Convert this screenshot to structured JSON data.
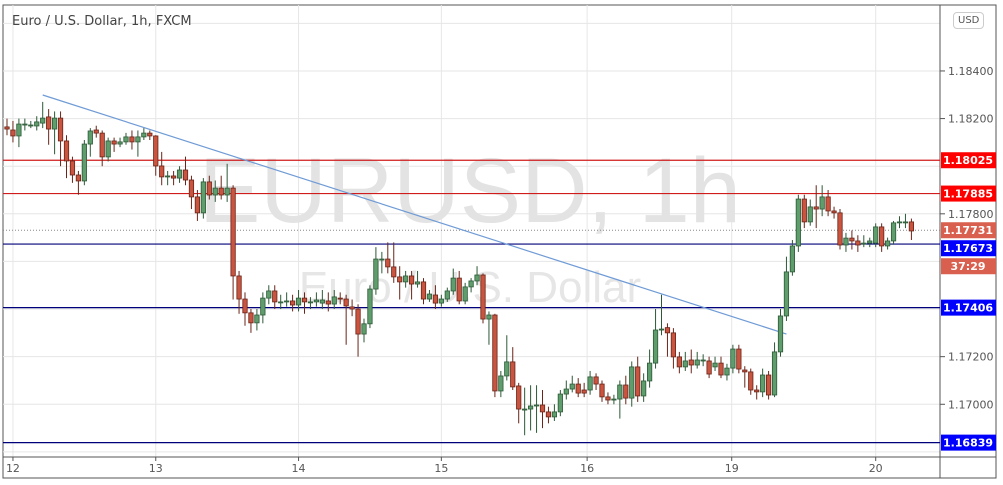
{
  "header": {
    "title": "Euro / U.S. Dollar, 1h, FXCM",
    "currency_button": "USD"
  },
  "watermark": {
    "symbol": "EURUSD, 1h",
    "name": "Euro / U.S. Dollar"
  },
  "colors": {
    "up": "#5f9d6d",
    "up_border": "#2c5a37",
    "down": "#c9543f",
    "down_border": "#6a2418",
    "resistance": "#d01c1c",
    "support": "#00007a",
    "label_red": "#ff0000",
    "label_blue": "#0000ff",
    "last_price": "#d9604e",
    "trendline": "#6f9bd6",
    "grid": "#e6e6e6"
  },
  "chart_data": {
    "type": "candlestick",
    "title": "Euro / U.S. Dollar, 1h, FXCM",
    "ylim": [
      1.168,
      1.18698
    ],
    "y_ticks": [
      "1.18400",
      "1.18200",
      "1.17800",
      "1.17200",
      "1.17000"
    ],
    "x_ticks": [
      {
        "label": "12",
        "index": 1
      },
      {
        "label": "13",
        "index": 25
      },
      {
        "label": "14",
        "index": 49
      },
      {
        "label": "15",
        "index": 73
      },
      {
        "label": "16",
        "index": 97.5
      },
      {
        "label": "19",
        "index": 121.8
      },
      {
        "label": "20",
        "index": 146
      }
    ],
    "levels": [
      {
        "price": 1.18025,
        "label": "1.18025",
        "kind": "resistance"
      },
      {
        "price": 1.17885,
        "label": "1.17885",
        "kind": "resistance"
      },
      {
        "price": 1.17673,
        "label": "1.17673",
        "kind": "support"
      },
      {
        "price": 1.17406,
        "label": "1.17406",
        "kind": "support"
      },
      {
        "price": 1.16839,
        "label": "1.16839",
        "kind": "support"
      }
    ],
    "last_price": {
      "price": 1.17731,
      "label": "1.17731",
      "countdown": "37:29"
    },
    "trendline": {
      "start": {
        "index": 6,
        "price": 1.18299
      },
      "end": {
        "index": 131,
        "price": 1.17295
      }
    },
    "candles_format": [
      "open",
      "high",
      "low",
      "close"
    ],
    "candles": [
      [
        1.18165,
        1.182,
        1.1813,
        1.18156
      ],
      [
        1.18152,
        1.1819,
        1.181,
        1.18127
      ],
      [
        1.18127,
        1.182,
        1.1808,
        1.18177
      ],
      [
        1.18177,
        1.182,
        1.1815,
        1.18177
      ],
      [
        1.18173,
        1.1819,
        1.1816,
        1.18173
      ],
      [
        1.18169,
        1.1821,
        1.1815,
        1.18186
      ],
      [
        1.18181,
        1.1827,
        1.1816,
        1.18202
      ],
      [
        1.18207,
        1.1824,
        1.1809,
        1.18156
      ],
      [
        1.18156,
        1.1823,
        1.1805,
        1.18202
      ],
      [
        1.18202,
        1.1823,
        1.18,
        1.18106
      ],
      [
        1.18106,
        1.1813,
        1.1795,
        1.18022
      ],
      [
        1.18022,
        1.1804,
        1.1793,
        1.17963
      ],
      [
        1.17963,
        1.1798,
        1.1788,
        1.17938
      ],
      [
        1.17938,
        1.1811,
        1.1792,
        1.18093
      ],
      [
        1.18093,
        1.1816,
        1.1804,
        1.18148
      ],
      [
        1.18152,
        1.1817,
        1.1812,
        1.18139
      ],
      [
        1.18139,
        1.1815,
        1.18,
        1.18039
      ],
      [
        1.18039,
        1.1812,
        1.1802,
        1.18106
      ],
      [
        1.18106,
        1.1812,
        1.1806,
        1.18093
      ],
      [
        1.18093,
        1.1812,
        1.1808,
        1.18102
      ],
      [
        1.18102,
        1.1814,
        1.1809,
        1.18123
      ],
      [
        1.18123,
        1.1815,
        1.1807,
        1.18102
      ],
      [
        1.18102,
        1.1815,
        1.1804,
        1.18123
      ],
      [
        1.18123,
        1.1816,
        1.1811,
        1.18139
      ],
      [
        1.18139,
        1.1815,
        1.1811,
        1.18127
      ],
      [
        1.18127,
        1.1813,
        1.1796,
        1.18001
      ],
      [
        1.18001,
        1.1806,
        1.1792,
        1.17955
      ],
      [
        1.17959,
        1.1798,
        1.1792,
        1.17959
      ],
      [
        1.17959,
        1.1798,
        1.1792,
        1.1795
      ],
      [
        1.1795,
        1.18,
        1.1793,
        1.17984
      ],
      [
        1.17984,
        1.1804,
        1.1792,
        1.17942
      ],
      [
        1.17942,
        1.1796,
        1.1782,
        1.17871
      ],
      [
        1.17871,
        1.179,
        1.1777,
        1.17804
      ],
      [
        1.17804,
        1.1795,
        1.1778,
        1.17934
      ],
      [
        1.17934,
        1.1796,
        1.1786,
        1.17879
      ],
      [
        1.17879,
        1.1794,
        1.1785,
        1.17908
      ],
      [
        1.17908,
        1.1796,
        1.1786,
        1.17879
      ],
      [
        1.17879,
        1.1801,
        1.1785,
        1.17908
      ],
      [
        1.17908,
        1.1792,
        1.1744,
        1.17539
      ],
      [
        1.17539,
        1.1756,
        1.1738,
        1.17442
      ],
      [
        1.17442,
        1.1747,
        1.1733,
        1.17384
      ],
      [
        1.17384,
        1.174,
        1.173,
        1.17342
      ],
      [
        1.17342,
        1.174,
        1.1731,
        1.17375
      ],
      [
        1.17375,
        1.1747,
        1.1734,
        1.17446
      ],
      [
        1.17446,
        1.175,
        1.1742,
        1.17476
      ],
      [
        1.17476,
        1.175,
        1.174,
        1.1743
      ],
      [
        1.1743,
        1.1746,
        1.174,
        1.1743
      ],
      [
        1.1743,
        1.1747,
        1.1741,
        1.17434
      ],
      [
        1.17434,
        1.1746,
        1.1739,
        1.17417
      ],
      [
        1.17417,
        1.1748,
        1.1739,
        1.17446
      ],
      [
        1.17446,
        1.1747,
        1.1738,
        1.1743
      ],
      [
        1.1743,
        1.1745,
        1.174,
        1.1743
      ],
      [
        1.1743,
        1.1747,
        1.1741,
        1.17438
      ],
      [
        1.17425,
        1.1748,
        1.174,
        1.17438
      ],
      [
        1.17434,
        1.1747,
        1.1739,
        1.17421
      ],
      [
        1.17421,
        1.1748,
        1.174,
        1.17451
      ],
      [
        1.17446,
        1.1747,
        1.1742,
        1.17442
      ],
      [
        1.17442,
        1.1746,
        1.1725,
        1.17413
      ],
      [
        1.17409,
        1.1744,
        1.1737,
        1.174
      ],
      [
        1.174,
        1.1742,
        1.172,
        1.17295
      ],
      [
        1.17295,
        1.1736,
        1.1726,
        1.17338
      ],
      [
        1.17338,
        1.175,
        1.1732,
        1.17484
      ],
      [
        1.17484,
        1.1766,
        1.1746,
        1.1761
      ],
      [
        1.1761,
        1.1764,
        1.1755,
        1.1761
      ],
      [
        1.1761,
        1.1768,
        1.1755,
        1.17577
      ],
      [
        1.17577,
        1.1768,
        1.1751,
        1.17535
      ],
      [
        1.17535,
        1.1758,
        1.1744,
        1.17514
      ],
      [
        1.17514,
        1.1756,
        1.1749,
        1.17539
      ],
      [
        1.17539,
        1.1756,
        1.1744,
        1.17505
      ],
      [
        1.17505,
        1.1756,
        1.1749,
        1.17514
      ],
      [
        1.17514,
        1.1753,
        1.1742,
        1.17442
      ],
      [
        1.17442,
        1.1748,
        1.1743,
        1.17463
      ],
      [
        1.17459,
        1.175,
        1.174,
        1.17425
      ],
      [
        1.17425,
        1.1746,
        1.1741,
        1.17442
      ],
      [
        1.17442,
        1.1749,
        1.1743,
        1.17476
      ],
      [
        1.17476,
        1.1757,
        1.1746,
        1.1753
      ],
      [
        1.1753,
        1.1756,
        1.1742,
        1.17434
      ],
      [
        1.17434,
        1.1751,
        1.1742,
        1.17493
      ],
      [
        1.17493,
        1.1753,
        1.1747,
        1.17518
      ],
      [
        1.17518,
        1.1758,
        1.175,
        1.17543
      ],
      [
        1.17543,
        1.1755,
        1.1734,
        1.17358
      ],
      [
        1.17358,
        1.1739,
        1.1725,
        1.17375
      ],
      [
        1.17375,
        1.1738,
        1.1703,
        1.17056
      ],
      [
        1.17056,
        1.1714,
        1.1703,
        1.17119
      ],
      [
        1.17119,
        1.1729,
        1.171,
        1.17178
      ],
      [
        1.17178,
        1.1724,
        1.1706,
        1.17073
      ],
      [
        1.17077,
        1.1709,
        1.1692,
        1.1698
      ],
      [
        1.1698,
        1.1707,
        1.1687,
        1.1698
      ],
      [
        1.1698,
        1.1708,
        1.1689,
        1.16993
      ],
      [
        1.16997,
        1.1708,
        1.1688,
        1.16997
      ],
      [
        1.16997,
        1.1706,
        1.169,
        1.16968
      ],
      [
        1.16968,
        1.1699,
        1.1692,
        1.16947
      ],
      [
        1.16947,
        1.17,
        1.1693,
        1.16968
      ],
      [
        1.16968,
        1.1706,
        1.1695,
        1.17043
      ],
      [
        1.17043,
        1.171,
        1.1702,
        1.17064
      ],
      [
        1.17064,
        1.1712,
        1.1705,
        1.17085
      ],
      [
        1.17085,
        1.1711,
        1.1703,
        1.17047
      ],
      [
        1.1706,
        1.1709,
        1.1703,
        1.17047
      ],
      [
        1.1706,
        1.1714,
        1.1704,
        1.17115
      ],
      [
        1.17115,
        1.1713,
        1.1706,
        1.17085
      ],
      [
        1.17085,
        1.171,
        1.1701,
        1.17031
      ],
      [
        1.17031,
        1.1705,
        1.17,
        1.17018
      ],
      [
        1.17022,
        1.1704,
        1.17,
        1.17022
      ],
      [
        1.17022,
        1.171,
        1.1694,
        1.17081
      ],
      [
        1.17081,
        1.1712,
        1.17,
        1.17026
      ],
      [
        1.17026,
        1.1718,
        1.1699,
        1.17157
      ],
      [
        1.17157,
        1.172,
        1.1701,
        1.17035
      ],
      [
        1.17035,
        1.1713,
        1.1701,
        1.17098
      ],
      [
        1.17098,
        1.1723,
        1.1707,
        1.17173
      ],
      [
        1.17173,
        1.174,
        1.1715,
        1.17312
      ],
      [
        1.17316,
        1.1746,
        1.1729,
        1.17316
      ],
      [
        1.17322,
        1.1734,
        1.172,
        1.173
      ],
      [
        1.173,
        1.1732,
        1.1715,
        1.17199
      ],
      [
        1.17199,
        1.1722,
        1.1713,
        1.17157
      ],
      [
        1.17157,
        1.1722,
        1.1714,
        1.17182
      ],
      [
        1.17186,
        1.1723,
        1.1713,
        1.17165
      ],
      [
        1.17165,
        1.1722,
        1.1715,
        1.17186
      ],
      [
        1.17186,
        1.1721,
        1.1716,
        1.17186
      ],
      [
        1.17182,
        1.172,
        1.1711,
        1.17127
      ],
      [
        1.17157,
        1.172,
        1.1714,
        1.17173
      ],
      [
        1.17173,
        1.172,
        1.1711,
        1.17123
      ],
      [
        1.17123,
        1.1717,
        1.171,
        1.17152
      ],
      [
        1.17152,
        1.1725,
        1.1713,
        1.17232
      ],
      [
        1.17232,
        1.1725,
        1.1713,
        1.17148
      ],
      [
        1.17144,
        1.1716,
        1.1707,
        1.17136
      ],
      [
        1.17136,
        1.1715,
        1.1704,
        1.1706
      ],
      [
        1.1706,
        1.1708,
        1.1702,
        1.17052
      ],
      [
        1.17052,
        1.1715,
        1.1703,
        1.17123
      ],
      [
        1.17123,
        1.1714,
        1.1702,
        1.17039
      ],
      [
        1.17039,
        1.1726,
        1.1703,
        1.1722
      ],
      [
        1.1722,
        1.174,
        1.172,
        1.17371
      ],
      [
        1.17371,
        1.1762,
        1.1735,
        1.17556
      ],
      [
        1.17556,
        1.1769,
        1.1754,
        1.17665
      ],
      [
        1.17665,
        1.1788,
        1.1764,
        1.17862
      ],
      [
        1.17862,
        1.1788,
        1.1774,
        1.17766
      ],
      [
        1.17766,
        1.1786,
        1.1775,
        1.17829
      ],
      [
        1.17829,
        1.1792,
        1.1774,
        1.1782
      ],
      [
        1.1782,
        1.1792,
        1.1779,
        1.17871
      ],
      [
        1.17871,
        1.179,
        1.1779,
        1.17812
      ],
      [
        1.17812,
        1.1783,
        1.1778,
        1.17804
      ],
      [
        1.17804,
        1.1782,
        1.1765,
        1.17669
      ],
      [
        1.17669,
        1.1772,
        1.1764,
        1.17698
      ],
      [
        1.17698,
        1.1773,
        1.1765,
        1.17686
      ],
      [
        1.17686,
        1.1771,
        1.1764,
        1.17669
      ],
      [
        1.17677,
        1.1771,
        1.1766,
        1.17677
      ],
      [
        1.17677,
        1.177,
        1.1766,
        1.17686
      ],
      [
        1.17677,
        1.1776,
        1.1766,
        1.17745
      ],
      [
        1.17745,
        1.1776,
        1.1764,
        1.17665
      ],
      [
        1.17665,
        1.177,
        1.1765,
        1.17686
      ],
      [
        1.17686,
        1.1777,
        1.1767,
        1.17762
      ],
      [
        1.17762,
        1.1779,
        1.1774,
        1.17766
      ],
      [
        1.17766,
        1.178,
        1.1774,
        1.17766
      ],
      [
        1.17766,
        1.1778,
        1.1769,
        1.17728
      ]
    ]
  }
}
